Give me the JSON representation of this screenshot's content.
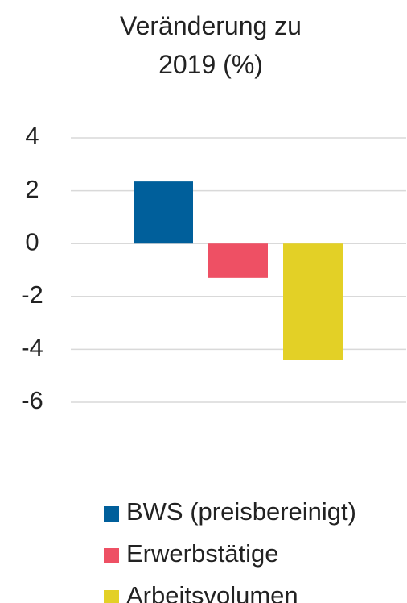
{
  "chart_data": {
    "type": "bar",
    "title": "Veränderung zu 2019 (%)",
    "categories": [
      null
    ],
    "series": [
      {
        "name": "BWS (preisbereinigt)",
        "color": "#005f9b",
        "values": [
          2.35
        ]
      },
      {
        "name": "Erwerbstätige",
        "color": "#ee5064",
        "values": [
          -1.3
        ]
      },
      {
        "name": "Arbeitsvolumen",
        "color": "#e3d026",
        "values": [
          -4.4
        ]
      }
    ],
    "ylim": [
      -6,
      4
    ],
    "yticks": [
      -6,
      -4,
      -2,
      0,
      2,
      4
    ],
    "grid": true,
    "legend": "bottom"
  }
}
